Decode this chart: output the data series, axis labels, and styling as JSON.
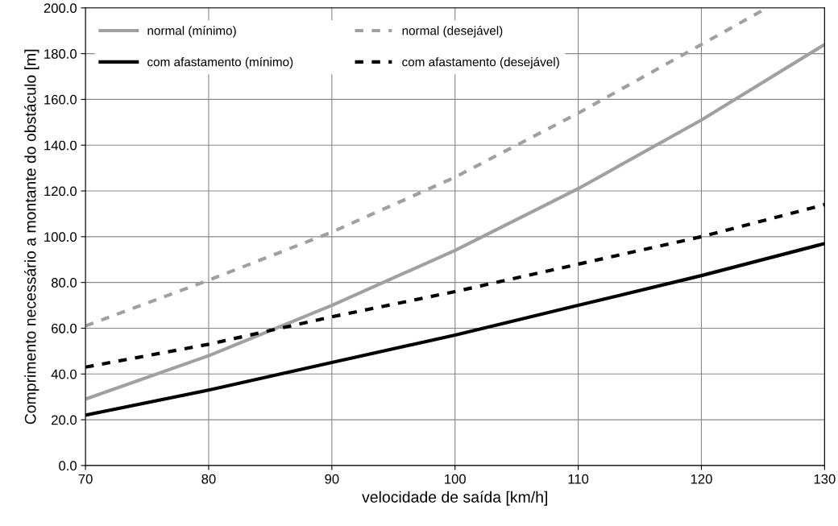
{
  "chart_data": {
    "type": "line",
    "xlabel": "velocidade de saída [km/h]",
    "ylabel": "Comprimento necessário a montante do obstáculo [m]",
    "xlim": [
      70,
      130
    ],
    "xticks": [
      70,
      80,
      90,
      100,
      110,
      120,
      130
    ],
    "ylim": [
      0,
      200
    ],
    "yticks": [
      {
        "value": 0,
        "label": "0.0"
      },
      {
        "value": 20,
        "label": "20.0"
      },
      {
        "value": 40,
        "label": "40.0"
      },
      {
        "value": 60,
        "label": "60.0"
      },
      {
        "value": 80,
        "label": "80.0"
      },
      {
        "value": 100,
        "label": "100.0"
      },
      {
        "value": 120,
        "label": "120.0"
      },
      {
        "value": 140,
        "label": "140.0"
      },
      {
        "value": 160,
        "label": "160.0"
      },
      {
        "value": 180,
        "label": "180.0"
      },
      {
        "value": 200,
        "label": "200.0"
      }
    ],
    "grid": true,
    "legend": "top left",
    "marker": "none",
    "series": [
      {
        "name": "normal (mínimo)",
        "color": "#a0a0a0",
        "line_style": "solid",
        "x": [
          70,
          80,
          90,
          100,
          110,
          120,
          130
        ],
        "values": [
          29,
          48,
          70,
          94,
          121,
          151,
          184
        ]
      },
      {
        "name": "normal (desejável)",
        "color": "#a0a0a0",
        "line_style": "dashed",
        "x": [
          70,
          80,
          90,
          100,
          110,
          120,
          125
        ],
        "values": [
          61,
          81,
          102,
          126,
          154,
          184,
          199
        ]
      },
      {
        "name": "com afastamento (mínimo)",
        "color": "#000000",
        "line_style": "solid",
        "x": [
          70,
          80,
          90,
          100,
          110,
          120,
          130
        ],
        "values": [
          22,
          33,
          45,
          57,
          70,
          83,
          97
        ]
      },
      {
        "name": "com afastamento (desejável)",
        "color": "#000000",
        "line_style": "dashed",
        "x": [
          70,
          80,
          90,
          100,
          110,
          120,
          130
        ],
        "values": [
          43,
          53,
          65,
          76,
          88,
          100,
          114
        ]
      }
    ]
  }
}
